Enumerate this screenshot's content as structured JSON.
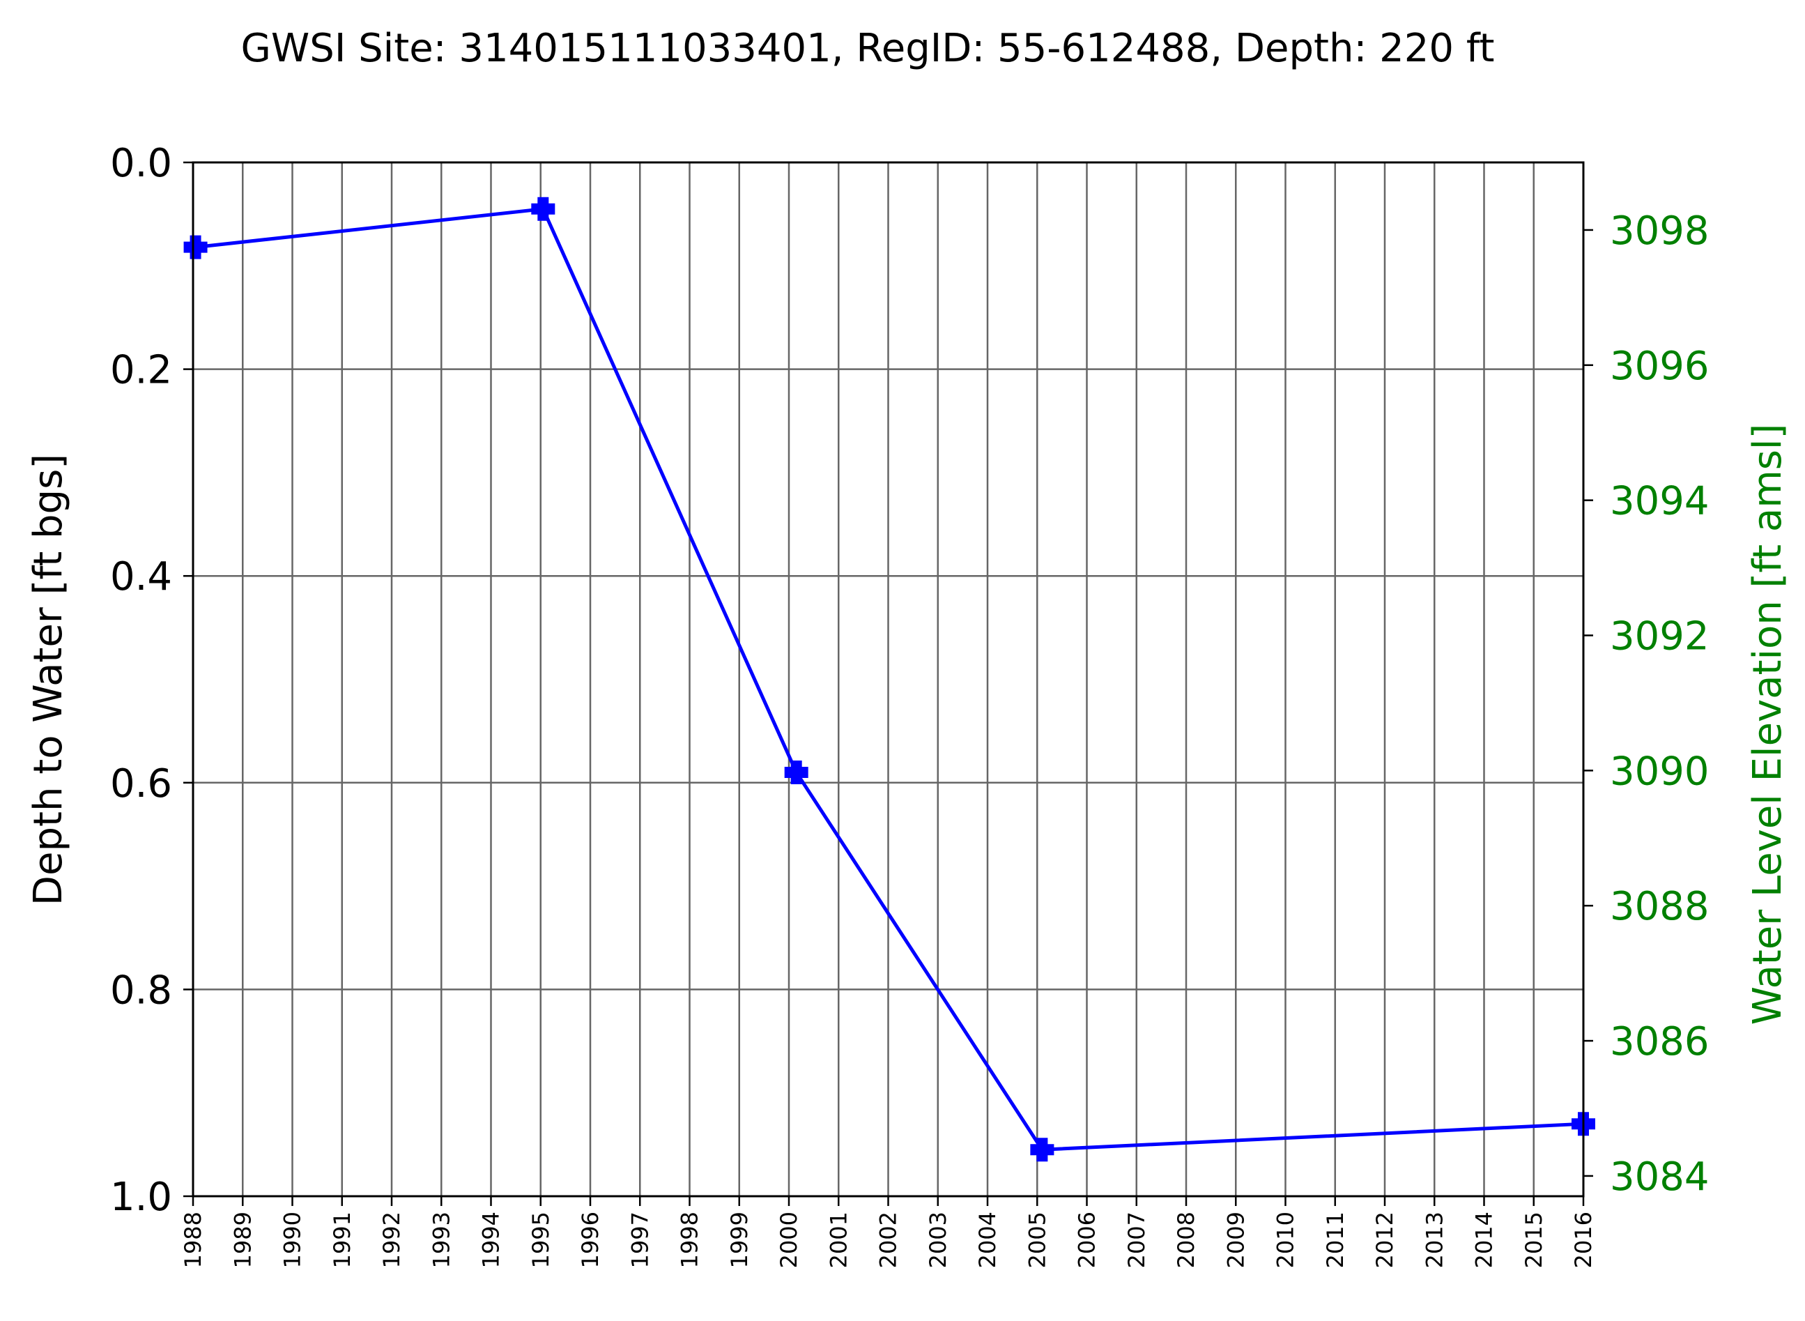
{
  "chart_data": {
    "type": "line",
    "title": "GWSI Site: 314015111033401, RegID: 55-612488, Depth: 220 ft",
    "ylabel": "Depth to Water [ft bgs]",
    "y2label": "Water Level Elevation [ft amsl]",
    "ylim": [
      0.0,
      1.0
    ],
    "y_inverted": true,
    "y2lim": [
      3099,
      3083.7
    ],
    "yticks": [
      "0.0",
      "0.2",
      "0.4",
      "0.6",
      "0.8",
      "1.0"
    ],
    "y2ticks": [
      "3098",
      "3096",
      "3094",
      "3092",
      "3090",
      "3088",
      "3086",
      "3084"
    ],
    "xlim": [
      1988,
      2016
    ],
    "xticks": [
      "1988",
      "1989",
      "1990",
      "1991",
      "1992",
      "1993",
      "1994",
      "1995",
      "1996",
      "1997",
      "1998",
      "1999",
      "2000",
      "2001",
      "2002",
      "2003",
      "2004",
      "2005",
      "2006",
      "2007",
      "2008",
      "2009",
      "2010",
      "2011",
      "2012",
      "2013",
      "2014",
      "2015",
      "2016"
    ],
    "grid": true,
    "series": [
      {
        "name": "Depth to Water",
        "color": "#0000ff",
        "marker": "plus-filled",
        "x": [
          1988.05,
          1995.05,
          2000.15,
          2005.1,
          2016.0
        ],
        "y": [
          0.082,
          0.045,
          0.59,
          0.955,
          0.93
        ]
      }
    ],
    "axis_colors": {
      "primary": "#000000",
      "secondary": "#008000",
      "grid": "#666666"
    }
  }
}
